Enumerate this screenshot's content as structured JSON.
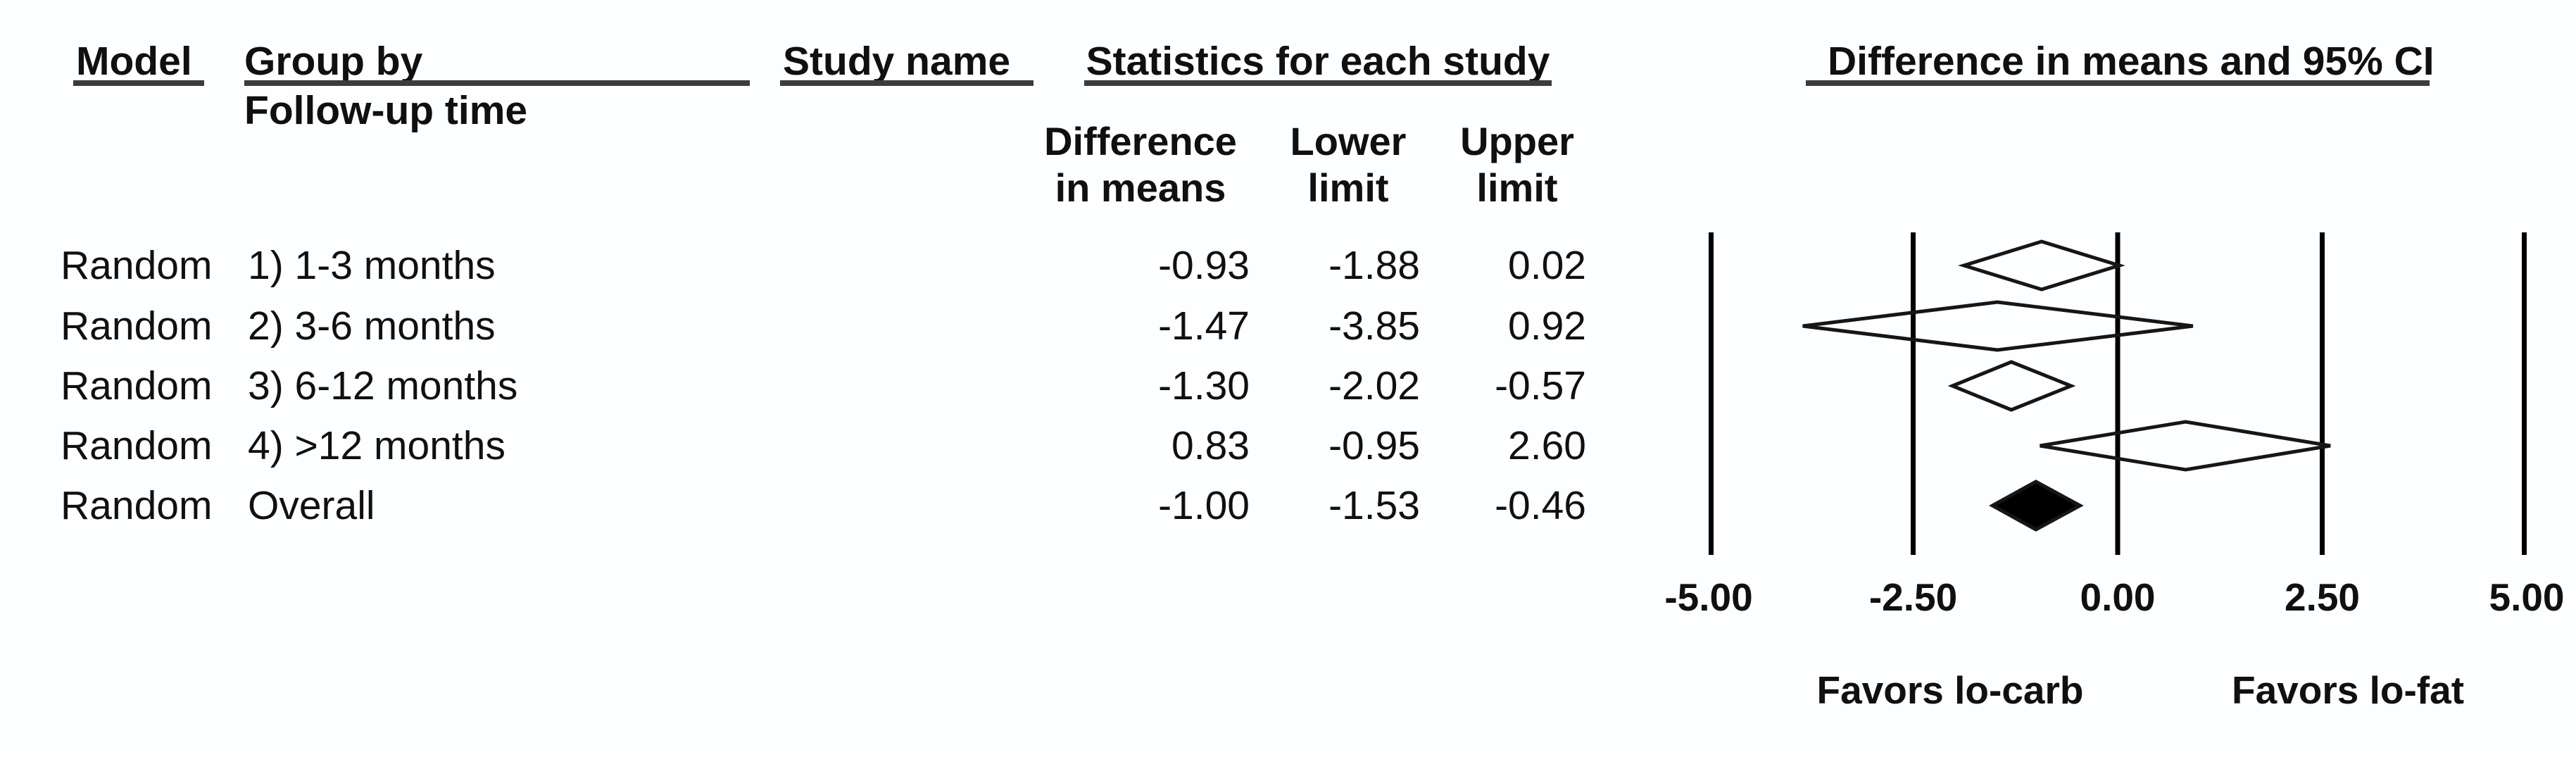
{
  "headers": {
    "model": "Model",
    "group_by": "Group by",
    "follow_up": "Follow-up time",
    "study_name": "Study name",
    "statistics": "Statistics for each study",
    "diff_line1": "Difference",
    "diff_line2": "in means",
    "lower_line1": "Lower",
    "lower_line2": "limit",
    "upper_line1": "Upper",
    "upper_line2": "limit",
    "ci": "Difference in means and 95% CI"
  },
  "table": {
    "rows": [
      {
        "model": "Random",
        "group": "1) 1-3 months",
        "study": "",
        "diff": "-0.93",
        "lower": "-1.88",
        "upper": "0.02"
      },
      {
        "model": "Random",
        "group": "2) 3-6 months",
        "study": "",
        "diff": "-1.47",
        "lower": "-3.85",
        "upper": "0.92"
      },
      {
        "model": "Random",
        "group": "3) 6-12 months",
        "study": "",
        "diff": "-1.30",
        "lower": "-2.02",
        "upper": "-0.57"
      },
      {
        "model": "Random",
        "group": "4) >12 months",
        "study": "",
        "diff": "0.83",
        "lower": "-0.95",
        "upper": "2.60"
      },
      {
        "model": "Random",
        "group": "Overall",
        "study": "",
        "diff": "-1.00",
        "lower": "-1.53",
        "upper": "-0.46"
      }
    ]
  },
  "chart_data": {
    "type": "scatter",
    "subtype": "forest-plot",
    "title": "Difference in means and 95% CI",
    "x_axis": {
      "range": [
        -5,
        5
      ],
      "ticks": [
        -5.0,
        -2.5,
        0.0,
        2.5,
        5.0
      ],
      "tick_labels": [
        "-5.00",
        "-2.50",
        "0.00",
        "2.50",
        "5.00"
      ]
    },
    "series": [
      {
        "label": "1) 1-3 months",
        "model": "Random",
        "mean": -0.93,
        "lower": -1.88,
        "upper": 0.02,
        "marker": "open-diamond"
      },
      {
        "label": "2) 3-6 months",
        "model": "Random",
        "mean": -1.47,
        "lower": -3.85,
        "upper": 0.92,
        "marker": "open-diamond"
      },
      {
        "label": "3) 6-12 months",
        "model": "Random",
        "mean": -1.3,
        "lower": -2.02,
        "upper": -0.57,
        "marker": "open-diamond"
      },
      {
        "label": "4) >12 months",
        "model": "Random",
        "mean": 0.83,
        "lower": -0.95,
        "upper": 2.6,
        "marker": "open-diamond"
      },
      {
        "label": "Overall",
        "model": "Random",
        "mean": -1.0,
        "lower": -1.53,
        "upper": -0.46,
        "marker": "filled-diamond"
      }
    ],
    "annotations": {
      "favors_left": "Favors lo-carb",
      "favors_right": "Favors lo-fat"
    },
    "gridlines": "vertical-at-ticks",
    "legend": "none",
    "colors": {
      "line": "#000000",
      "diamond_outline": "#161616",
      "overall_fill": "#000000",
      "rule": "#3c3c3c",
      "text": "#101010"
    }
  }
}
